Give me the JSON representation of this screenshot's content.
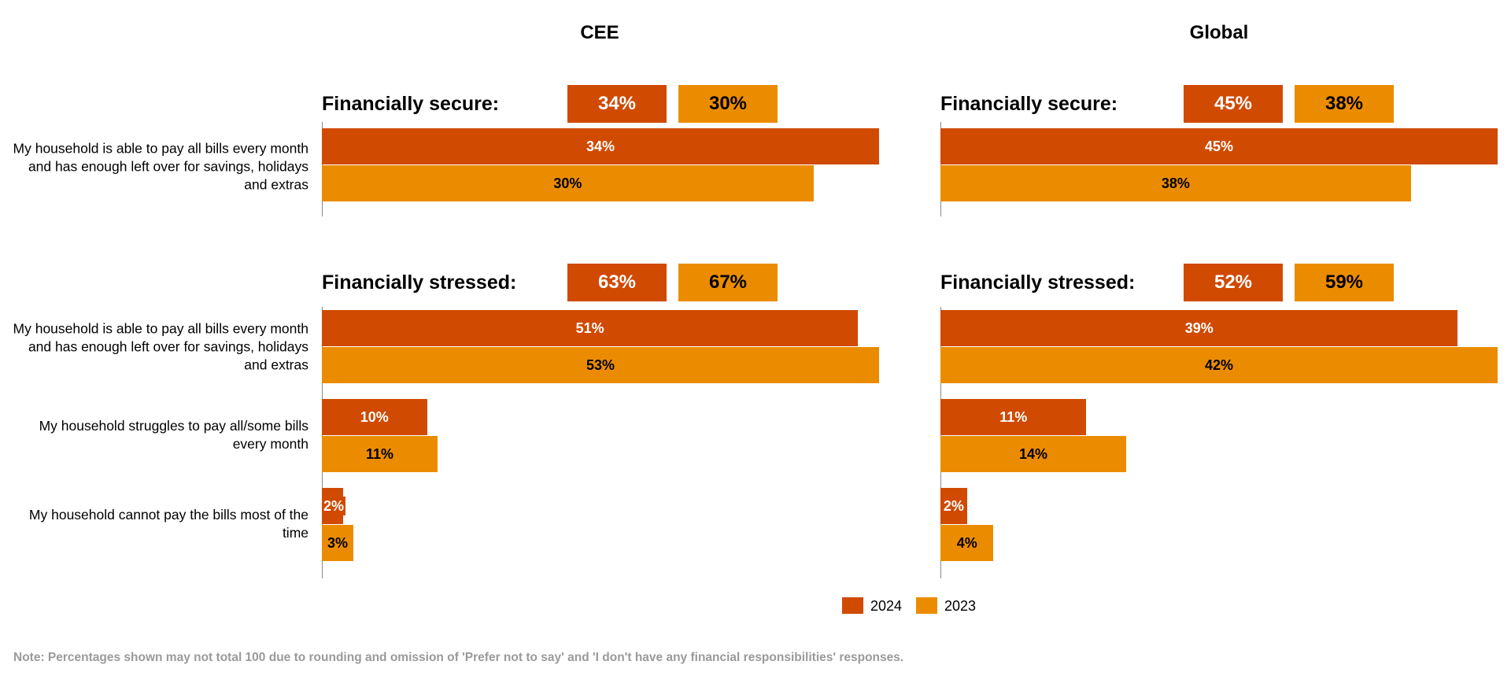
{
  "colors": {
    "y2024": "#d04a02",
    "y2023": "#eb8c00"
  },
  "chart_data": {
    "type": "bar",
    "orientation": "horizontal",
    "legend": {
      "position": "bottom-center",
      "entries": [
        "2024",
        "2023"
      ]
    },
    "note": "Note: Percentages shown may not total 100 due to rounding and omission of 'Prefer not to say' and 'I don't have any financial responsibilities' responses.",
    "panels": [
      {
        "title": "CEE",
        "groups": [
          {
            "label": "Financially secure:",
            "totals": [
              "34%",
              "30%"
            ],
            "categories": [
              "My household is able to pay all bills every month and has enough left over for savings, holidays and extras"
            ],
            "series": [
              {
                "name": "2024",
                "values": [
                  34
                ]
              },
              {
                "name": "2023",
                "values": [
                  30
                ]
              }
            ]
          },
          {
            "label": "Financially stressed:",
            "totals": [
              "63%",
              "67%"
            ],
            "categories": [
              "My household is able to pay all bills every month and has enough left over for savings, holidays and extras",
              "My household struggles to pay all/some bills every month",
              "My household cannot pay the bills most of the time"
            ],
            "series": [
              {
                "name": "2024",
                "values": [
                  51,
                  10,
                  2
                ]
              },
              {
                "name": "2023",
                "values": [
                  53,
                  11,
                  3
                ]
              }
            ]
          }
        ]
      },
      {
        "title": "Global",
        "groups": [
          {
            "label": "Financially secure:",
            "totals": [
              "45%",
              "38%"
            ],
            "categories": [],
            "series": [
              {
                "name": "2024",
                "values": [
                  45
                ]
              },
              {
                "name": "2023",
                "values": [
                  38
                ]
              }
            ]
          },
          {
            "label": "Financially stressed:",
            "totals": [
              "52%",
              "59%"
            ],
            "categories": [],
            "series": [
              {
                "name": "2024",
                "values": [
                  39,
                  11,
                  2
                ]
              },
              {
                "name": "2023",
                "values": [
                  42,
                  14,
                  4
                ]
              }
            ]
          }
        ]
      }
    ]
  }
}
